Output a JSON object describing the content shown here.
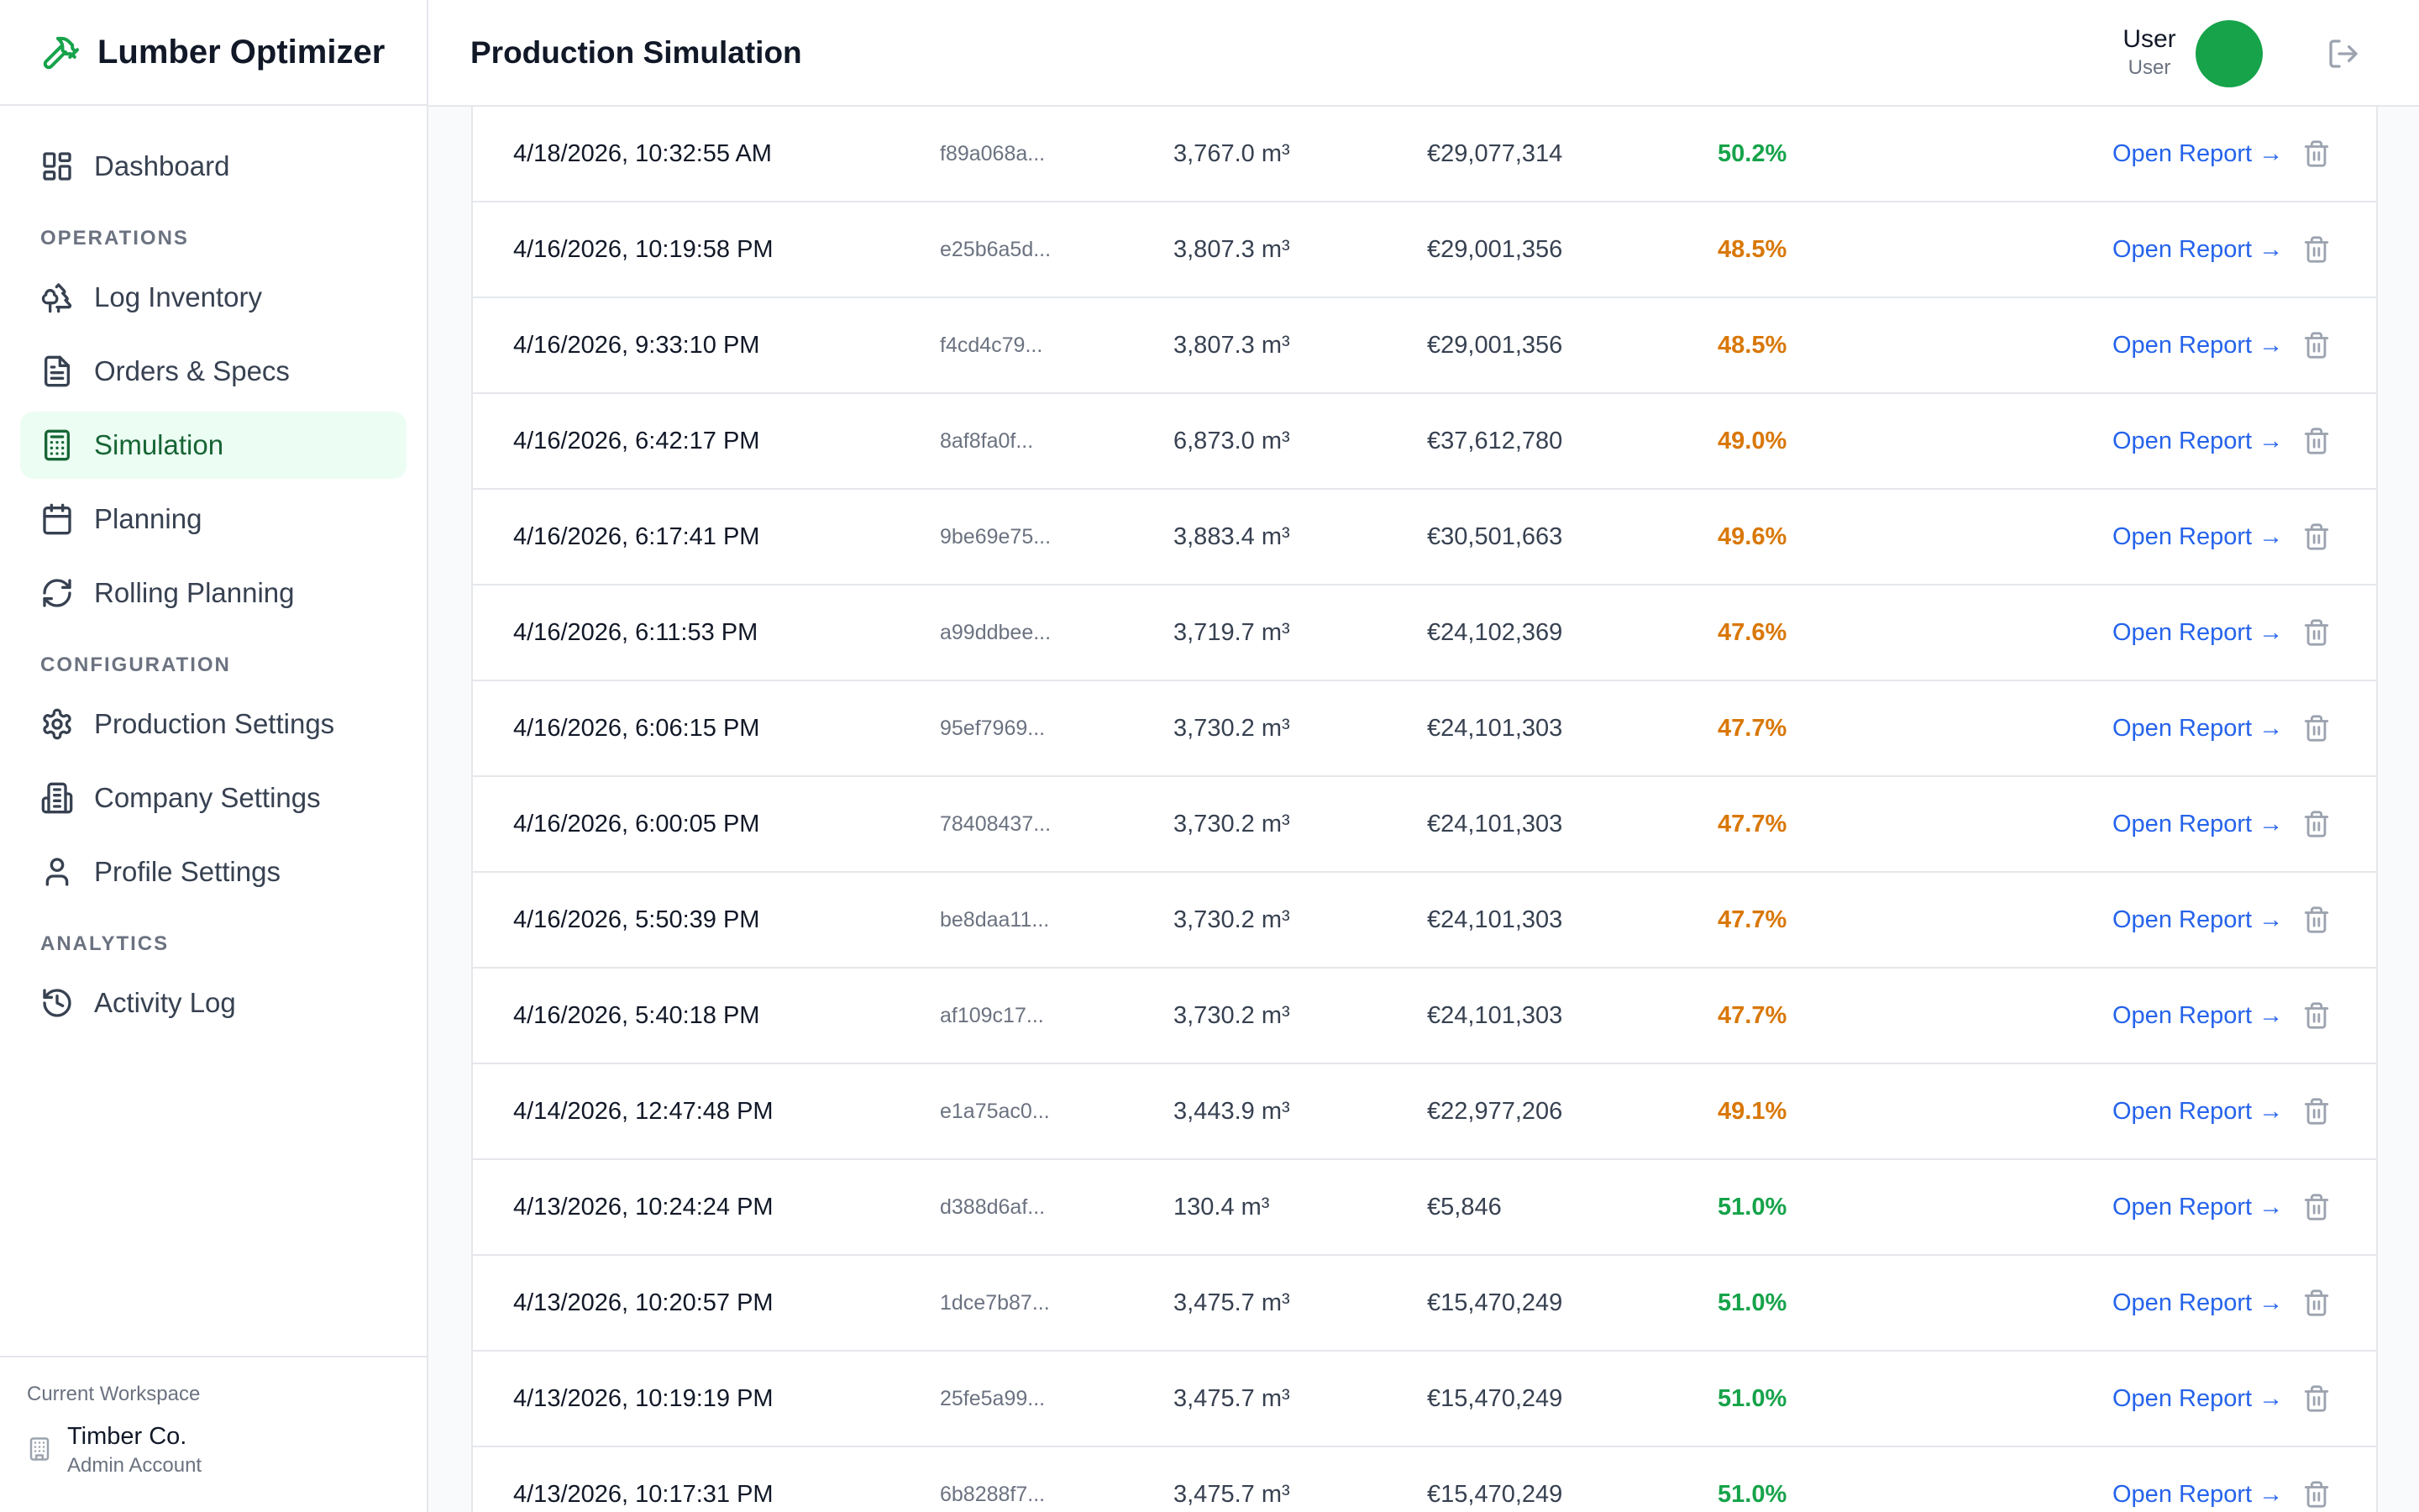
{
  "app": {
    "title": "Lumber Optimizer",
    "brand_color": "#16a34a"
  },
  "header": {
    "title": "Production Simulation"
  },
  "user": {
    "name": "User",
    "role": "User"
  },
  "sidebar": {
    "dashboard": "Dashboard",
    "sections": {
      "operations": "OPERATIONS",
      "configuration": "CONFIGURATION",
      "analytics": "ANALYTICS"
    },
    "items": {
      "log_inventory": "Log Inventory",
      "orders_specs": "Orders & Specs",
      "simulation": "Simulation",
      "planning": "Planning",
      "rolling_planning": "Rolling Planning",
      "production_settings": "Production Settings",
      "company_settings": "Company Settings",
      "profile_settings": "Profile Settings",
      "activity_log": "Activity Log"
    },
    "active": "simulation"
  },
  "workspace": {
    "label": "Current Workspace",
    "name": "Timber Co.",
    "role": "Admin Account"
  },
  "colors": {
    "yield_high": "#16a34a",
    "yield_mid": "#d97706",
    "link": "#2563eb"
  },
  "table": {
    "link_label": "Open Report →",
    "rows": [
      {
        "date": "4/18/2026, 10:32:55 AM",
        "id": "f89a068a...",
        "volume": "3,767.0 m³",
        "value": "€29,077,314",
        "yield": "50.2%",
        "yield_level": "high"
      },
      {
        "date": "4/16/2026, 10:19:58 PM",
        "id": "e25b6a5d...",
        "volume": "3,807.3 m³",
        "value": "€29,001,356",
        "yield": "48.5%",
        "yield_level": "mid"
      },
      {
        "date": "4/16/2026, 9:33:10 PM",
        "id": "f4cd4c79...",
        "volume": "3,807.3 m³",
        "value": "€29,001,356",
        "yield": "48.5%",
        "yield_level": "mid"
      },
      {
        "date": "4/16/2026, 6:42:17 PM",
        "id": "8af8fa0f...",
        "volume": "6,873.0 m³",
        "value": "€37,612,780",
        "yield": "49.0%",
        "yield_level": "mid"
      },
      {
        "date": "4/16/2026, 6:17:41 PM",
        "id": "9be69e75...",
        "volume": "3,883.4 m³",
        "value": "€30,501,663",
        "yield": "49.6%",
        "yield_level": "mid"
      },
      {
        "date": "4/16/2026, 6:11:53 PM",
        "id": "a99ddbee...",
        "volume": "3,719.7 m³",
        "value": "€24,102,369",
        "yield": "47.6%",
        "yield_level": "mid"
      },
      {
        "date": "4/16/2026, 6:06:15 PM",
        "id": "95ef7969...",
        "volume": "3,730.2 m³",
        "value": "€24,101,303",
        "yield": "47.7%",
        "yield_level": "mid"
      },
      {
        "date": "4/16/2026, 6:00:05 PM",
        "id": "78408437...",
        "volume": "3,730.2 m³",
        "value": "€24,101,303",
        "yield": "47.7%",
        "yield_level": "mid"
      },
      {
        "date": "4/16/2026, 5:50:39 PM",
        "id": "be8daa11...",
        "volume": "3,730.2 m³",
        "value": "€24,101,303",
        "yield": "47.7%",
        "yield_level": "mid"
      },
      {
        "date": "4/16/2026, 5:40:18 PM",
        "id": "af109c17...",
        "volume": "3,730.2 m³",
        "value": "€24,101,303",
        "yield": "47.7%",
        "yield_level": "mid"
      },
      {
        "date": "4/14/2026, 12:47:48 PM",
        "id": "e1a75ac0...",
        "volume": "3,443.9 m³",
        "value": "€22,977,206",
        "yield": "49.1%",
        "yield_level": "mid"
      },
      {
        "date": "4/13/2026, 10:24:24 PM",
        "id": "d388d6af...",
        "volume": "130.4 m³",
        "value": "€5,846",
        "yield": "51.0%",
        "yield_level": "high"
      },
      {
        "date": "4/13/2026, 10:20:57 PM",
        "id": "1dce7b87...",
        "volume": "3,475.7 m³",
        "value": "€15,470,249",
        "yield": "51.0%",
        "yield_level": "high"
      },
      {
        "date": "4/13/2026, 10:19:19 PM",
        "id": "25fe5a99...",
        "volume": "3,475.7 m³",
        "value": "€15,470,249",
        "yield": "51.0%",
        "yield_level": "high"
      },
      {
        "date": "4/13/2026, 10:17:31 PM",
        "id": "6b8288f7...",
        "volume": "3,475.7 m³",
        "value": "€15,470,249",
        "yield": "51.0%",
        "yield_level": "high"
      }
    ]
  }
}
